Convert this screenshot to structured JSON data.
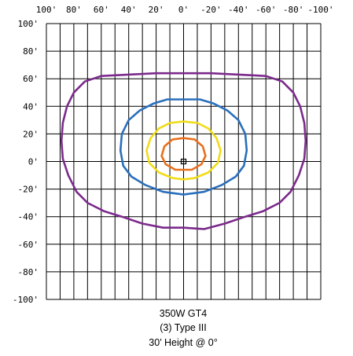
{
  "chart_data": {
    "type": "line",
    "title": [
      "350W GT4",
      "(3) Type III",
      "30’ Height @ 0°"
    ],
    "x_ticks": [
      {
        "value": 100,
        "label": "100'"
      },
      {
        "value": 80,
        "label": "80'"
      },
      {
        "value": 60,
        "label": "60'"
      },
      {
        "value": 40,
        "label": "40'"
      },
      {
        "value": 20,
        "label": "20'"
      },
      {
        "value": 0,
        "label": "0'"
      },
      {
        "value": -20,
        "label": "-20'"
      },
      {
        "value": -40,
        "label": "-40'"
      },
      {
        "value": -60,
        "label": "-60'"
      },
      {
        "value": -80,
        "label": "-80'"
      },
      {
        "value": -100,
        "label": "-100'"
      }
    ],
    "y_ticks": [
      {
        "value": 100,
        "label": "100'"
      },
      {
        "value": 80,
        "label": "80'"
      },
      {
        "value": 60,
        "label": "60'"
      },
      {
        "value": 40,
        "label": "40'"
      },
      {
        "value": 20,
        "label": "20'"
      },
      {
        "value": 0,
        "label": "0'"
      },
      {
        "value": -20,
        "label": "-20'"
      },
      {
        "value": -40,
        "label": "-40'"
      },
      {
        "value": -60,
        "label": "-60'"
      },
      {
        "value": -80,
        "label": "-80'"
      },
      {
        "value": -100,
        "label": "-100'"
      }
    ],
    "xlim": [
      100,
      -100
    ],
    "ylim": [
      -100,
      100
    ],
    "x_minor_step": 10,
    "y_major_step": 20,
    "grid": true,
    "pole_marker": {
      "x": 0,
      "y": 0
    },
    "series": [
      {
        "color": "#7b2a8c",
        "points": [
          [
            0,
            64
          ],
          [
            -20,
            64
          ],
          [
            -40,
            63
          ],
          [
            -60,
            62
          ],
          [
            -72,
            58
          ],
          [
            -80,
            50
          ],
          [
            -85,
            40
          ],
          [
            -88,
            28
          ],
          [
            -89,
            15
          ],
          [
            -88,
            2
          ],
          [
            -84,
            -10
          ],
          [
            -78,
            -22
          ],
          [
            -70,
            -30
          ],
          [
            -58,
            -36
          ],
          [
            -45,
            -40
          ],
          [
            -30,
            -45
          ],
          [
            -15,
            -49
          ],
          [
            0,
            -48
          ],
          [
            15,
            -48
          ],
          [
            30,
            -45
          ],
          [
            45,
            -40
          ],
          [
            58,
            -36
          ],
          [
            70,
            -30
          ],
          [
            78,
            -22
          ],
          [
            84,
            -10
          ],
          [
            88,
            2
          ],
          [
            89,
            15
          ],
          [
            88,
            28
          ],
          [
            85,
            40
          ],
          [
            80,
            50
          ],
          [
            72,
            58
          ],
          [
            60,
            62
          ],
          [
            40,
            63
          ],
          [
            20,
            64
          ],
          [
            0,
            64
          ]
        ]
      },
      {
        "color": "#2a6fbc",
        "points": [
          [
            0,
            45
          ],
          [
            -12,
            45
          ],
          [
            -22,
            42
          ],
          [
            -32,
            37
          ],
          [
            -40,
            30
          ],
          [
            -45,
            20
          ],
          [
            -46,
            8
          ],
          [
            -44,
            -3
          ],
          [
            -38,
            -11
          ],
          [
            -28,
            -17
          ],
          [
            -15,
            -22
          ],
          [
            0,
            -24
          ],
          [
            15,
            -22
          ],
          [
            28,
            -17
          ],
          [
            38,
            -11
          ],
          [
            44,
            -3
          ],
          [
            46,
            8
          ],
          [
            45,
            20
          ],
          [
            40,
            30
          ],
          [
            32,
            37
          ],
          [
            22,
            42
          ],
          [
            12,
            45
          ],
          [
            0,
            45
          ]
        ]
      },
      {
        "color": "#f0dc1a",
        "points": [
          [
            0,
            29
          ],
          [
            -10,
            28
          ],
          [
            -18,
            24
          ],
          [
            -24,
            17
          ],
          [
            -27,
            8
          ],
          [
            -25,
            -1
          ],
          [
            -18,
            -8
          ],
          [
            -8,
            -12
          ],
          [
            0,
            -13
          ],
          [
            8,
            -12
          ],
          [
            18,
            -8
          ],
          [
            25,
            -1
          ],
          [
            27,
            8
          ],
          [
            24,
            17
          ],
          [
            18,
            24
          ],
          [
            10,
            28
          ],
          [
            0,
            29
          ]
        ]
      },
      {
        "color": "#e8701e",
        "points": [
          [
            0,
            17
          ],
          [
            -8,
            16
          ],
          [
            -14,
            11
          ],
          [
            -16,
            4
          ],
          [
            -13,
            -2
          ],
          [
            -6,
            -6
          ],
          [
            0,
            -6
          ],
          [
            6,
            -6
          ],
          [
            13,
            -2
          ],
          [
            16,
            4
          ],
          [
            14,
            11
          ],
          [
            8,
            16
          ],
          [
            0,
            17
          ]
        ]
      }
    ]
  }
}
